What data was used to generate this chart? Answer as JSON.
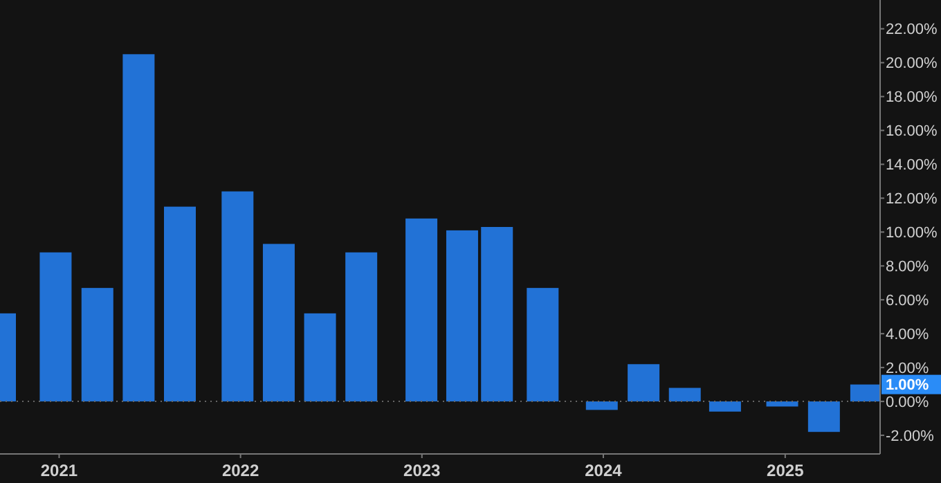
{
  "chart_data": {
    "type": "bar",
    "x": [
      "2020-09-04",
      "2020-12-25",
      "2021-03-19",
      "2021-06-10",
      "2021-09-01",
      "2021-12-26",
      "2022-03-19",
      "2022-06-10",
      "2022-09-01",
      "2022-12-31",
      "2023-03-23",
      "2023-06-01",
      "2023-09-01",
      "2023-12-29",
      "2024-03-22",
      "2024-06-13",
      "2024-09-02",
      "2024-12-26",
      "2025-03-20",
      "2025-06-13"
    ],
    "series": [
      {
        "color": "#2272d6",
        "values": [
          5.2,
          8.8,
          6.7,
          20.5,
          11.5,
          12.4,
          9.3,
          5.2,
          8.8,
          10.8,
          10.1,
          10.3,
          6.7,
          -0.5,
          2.2,
          0.8,
          -0.6,
          -0.3,
          -1.8,
          1.0
        ]
      }
    ],
    "xlim": [
      "2020-09-04",
      "2025-07-11"
    ],
    "xticks": [
      "2021",
      "2022",
      "2023",
      "2024",
      "2025"
    ],
    "ylim": [
      -3.1,
      23.7
    ],
    "yticks": [
      {
        "value": -2,
        "label": "-2.00%"
      },
      {
        "value": 0,
        "label": "0.00%"
      },
      {
        "value": 2,
        "label": "2.00%"
      },
      {
        "value": 4,
        "label": "4.00%"
      },
      {
        "value": 6,
        "label": "6.00%"
      },
      {
        "value": 8,
        "label": "8.00%"
      },
      {
        "value": 10,
        "label": "10.00%"
      },
      {
        "value": 12,
        "label": "12.00%"
      },
      {
        "value": 14,
        "label": "14.00%"
      },
      {
        "value": 16,
        "label": "16.00%"
      },
      {
        "value": 18,
        "label": "18.00%"
      },
      {
        "value": 20,
        "label": "20.00%"
      },
      {
        "value": 22,
        "label": "22.00%"
      }
    ],
    "ref_lines": [
      {
        "axis": "y",
        "value": 0,
        "line_style": "dotted",
        "color": "#666666"
      }
    ],
    "annotations": [
      "1.00%"
    ],
    "grid": false
  }
}
